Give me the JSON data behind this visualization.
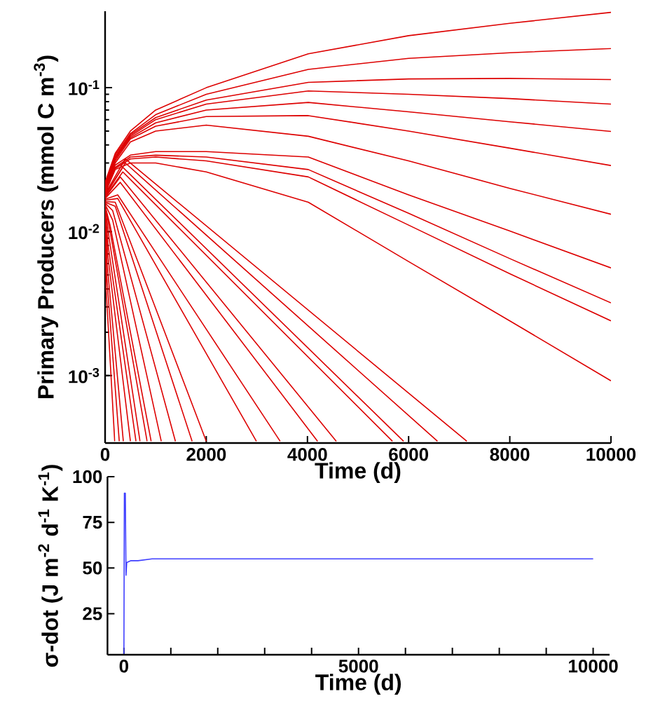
{
  "chart_data": [
    {
      "type": "line",
      "log": "y",
      "xlabel": "Time (d)",
      "ylabel": "Primary Producers (mmol C m$^{-3}$)",
      "xlim": [
        0,
        10000
      ],
      "xticks": [
        0,
        2000,
        4000,
        6000,
        8000,
        10000
      ],
      "ylim": [
        0.00034,
        0.34
      ],
      "yticks": [
        {
          "value": 0.001,
          "label": "10$^{-3}$"
        },
        {
          "value": 0.01,
          "label": "10$^{-2}$"
        },
        {
          "value": 0.1,
          "label": "10$^{-1}$"
        }
      ],
      "series": [
        {
          "color": "#dd0000",
          "x": [
            0,
            200,
            500,
            1000,
            2000,
            4017,
            6000,
            8000,
            10000
          ],
          "values": [
            0.022,
            0.035,
            0.05,
            0.07,
            0.1,
            0.172,
            0.23,
            0.28,
            0.334
          ]
        },
        {
          "color": "#dd0000",
          "x": [
            0,
            200,
            500,
            1000,
            2000,
            4017,
            6000,
            8000,
            10000
          ],
          "values": [
            0.0215,
            0.034,
            0.048,
            0.065,
            0.09,
            0.134,
            0.16,
            0.175,
            0.187
          ]
        },
        {
          "color": "#dd0000",
          "x": [
            0,
            200,
            500,
            1000,
            2000,
            4017,
            6000,
            8000,
            10000
          ],
          "values": [
            0.021,
            0.033,
            0.047,
            0.062,
            0.082,
            0.109,
            0.115,
            0.116,
            0.114
          ]
        },
        {
          "color": "#dd0000",
          "x": [
            0,
            200,
            500,
            1000,
            2000,
            4017,
            6000,
            8000,
            10000
          ],
          "values": [
            0.0205,
            0.0325,
            0.046,
            0.06,
            0.077,
            0.095,
            0.09,
            0.084,
            0.077
          ]
        },
        {
          "color": "#dd0000",
          "x": [
            0,
            200,
            500,
            1000,
            2000,
            4017,
            6000,
            8000,
            10000
          ],
          "values": [
            0.02,
            0.032,
            0.045,
            0.057,
            0.07,
            0.079,
            0.068,
            0.058,
            0.0497
          ]
        },
        {
          "color": "#dd0000",
          "x": [
            0,
            200,
            500,
            1000,
            2000,
            4017,
            6000,
            8000,
            10000
          ],
          "values": [
            0.0198,
            0.031,
            0.044,
            0.054,
            0.063,
            0.064,
            0.05,
            0.038,
            0.0288
          ]
        },
        {
          "color": "#dd0000",
          "x": [
            0,
            200,
            500,
            1000,
            2000,
            4017,
            6000,
            8000,
            10000
          ],
          "values": [
            0.0195,
            0.03,
            0.042,
            0.05,
            0.055,
            0.046,
            0.031,
            0.02,
            0.0132
          ]
        },
        {
          "color": "#dd0000",
          "x": [
            0,
            200,
            500,
            1000,
            2000,
            4017,
            6000,
            8000,
            10000
          ],
          "values": [
            0.0192,
            0.029,
            0.034,
            0.036,
            0.036,
            0.033,
            0.018,
            0.0101,
            0.0056
          ]
        },
        {
          "color": "#dd0000",
          "x": [
            0,
            200,
            500,
            1000,
            2000,
            4017,
            6000,
            8000,
            10000
          ],
          "values": [
            0.019,
            0.028,
            0.033,
            0.034,
            0.033,
            0.027,
            0.0134,
            0.0065,
            0.0032
          ]
        },
        {
          "color": "#dd0000",
          "x": [
            0,
            200,
            500,
            1000,
            2000,
            4017,
            6000,
            8000,
            10000
          ],
          "values": [
            0.0188,
            0.0275,
            0.032,
            0.033,
            0.031,
            0.024,
            0.0111,
            0.0051,
            0.0024
          ]
        },
        {
          "color": "#dd0000",
          "x": [
            0,
            200,
            500,
            1000,
            2000,
            4017,
            6000,
            8000,
            10000
          ],
          "values": [
            0.0185,
            0.027,
            0.03,
            0.03,
            0.026,
            0.016,
            0.0062,
            0.0024,
            0.00092
          ]
        },
        {
          "color": "#dd0000",
          "x": [
            0,
            400,
            7150
          ],
          "values": [
            0.0183,
            0.032,
            0.00035
          ]
        },
        {
          "color": "#dd0000",
          "x": [
            0,
            400,
            6570
          ],
          "values": [
            0.018,
            0.03,
            0.00035
          ]
        },
        {
          "color": "#dd0000",
          "x": [
            0,
            350,
            5900
          ],
          "values": [
            0.0178,
            0.028,
            0.00035
          ]
        },
        {
          "color": "#dd0000",
          "x": [
            0,
            350,
            5680
          ],
          "values": [
            0.0175,
            0.026,
            0.00035
          ]
        },
        {
          "color": "#dd0000",
          "x": [
            0,
            300,
            4570
          ],
          "values": [
            0.0172,
            0.024,
            0.00035
          ]
        },
        {
          "color": "#dd0000",
          "x": [
            0,
            300,
            4200
          ],
          "values": [
            0.017,
            0.022,
            0.00035
          ]
        },
        {
          "color": "#dd0000",
          "x": [
            0,
            250,
            3460
          ],
          "values": [
            0.0168,
            0.018,
            0.00035
          ]
        },
        {
          "color": "#dd0000",
          "x": [
            0,
            250,
            2990
          ],
          "values": [
            0.0165,
            0.017,
            0.00035
          ]
        },
        {
          "color": "#dd0000",
          "x": [
            0,
            200,
            2000
          ],
          "values": [
            0.0162,
            0.016,
            0.00035
          ]
        },
        {
          "color": "#dd0000",
          "x": [
            0,
            200,
            1720
          ],
          "values": [
            0.016,
            0.015,
            0.00035
          ]
        },
        {
          "color": "#dd0000",
          "x": [
            0,
            150,
            1390
          ],
          "values": [
            0.0158,
            0.014,
            0.00035
          ]
        },
        {
          "color": "#dd0000",
          "x": [
            0,
            150,
            1110
          ],
          "values": [
            0.0155,
            0.012,
            0.00035
          ]
        },
        {
          "color": "#dd0000",
          "x": [
            0,
            100,
            910
          ],
          "values": [
            0.0152,
            0.011,
            0.00035
          ]
        },
        {
          "color": "#dd0000",
          "x": [
            0,
            100,
            830
          ],
          "values": [
            0.015,
            0.01,
            0.00035
          ]
        },
        {
          "color": "#dd0000",
          "x": [
            0,
            80,
            690
          ],
          "values": [
            0.0148,
            0.009,
            0.00035
          ]
        },
        {
          "color": "#dd0000",
          "x": [
            0,
            60,
            610
          ],
          "values": [
            0.0145,
            0.008,
            0.00035
          ]
        },
        {
          "color": "#dd0000",
          "x": [
            0,
            50,
            500
          ],
          "values": [
            0.0142,
            0.007,
            0.00035
          ]
        },
        {
          "color": "#dd0000",
          "x": [
            0,
            40,
            360
          ],
          "values": [
            0.014,
            0.006,
            0.00035
          ]
        },
        {
          "color": "#dd0000",
          "x": [
            0,
            30,
            280
          ],
          "values": [
            0.0138,
            0.005,
            0.00035
          ]
        },
        {
          "color": "#dd0000",
          "x": [
            0,
            20,
            190
          ],
          "values": [
            0.0135,
            0.004,
            0.00035
          ]
        }
      ]
    },
    {
      "type": "line",
      "xlabel": "Time (d)",
      "ylabel": "σ-dot (J m$^{-2}$ d$^{-1}$ K$^{-1}$)",
      "xlim": [
        -350,
        10350
      ],
      "xticks": [
        0,
        {
          "value": 1000,
          "label": null
        },
        {
          "value": 2000,
          "label": null
        },
        {
          "value": 3000,
          "label": null
        },
        {
          "value": 4000,
          "label": null
        },
        5000,
        {
          "value": 6000,
          "label": null
        },
        {
          "value": 7000,
          "label": null
        },
        {
          "value": 8000,
          "label": null
        },
        {
          "value": 9000,
          "label": null
        },
        10000
      ],
      "ylim": [
        2.5,
        100
      ],
      "yticks": [
        25,
        50,
        75,
        100
      ],
      "series": [
        {
          "color": "#3f3fff",
          "x": [
            0,
            10,
            30,
            45,
            60,
            150,
            300,
            600,
            1000,
            10000
          ],
          "values": [
            3,
            91,
            91,
            46,
            53,
            54,
            54,
            55,
            55,
            55
          ]
        }
      ]
    }
  ]
}
